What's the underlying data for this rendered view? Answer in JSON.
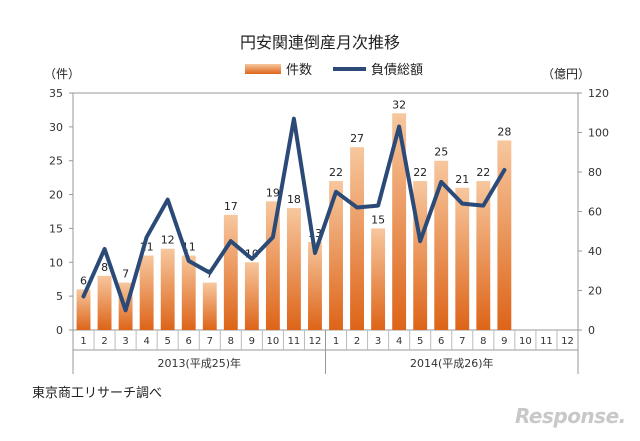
{
  "chart_data": {
    "type": "bar",
    "title": "円安関連倒産月次推移",
    "left_axis_unit": "（件）",
    "right_axis_unit": "（億円）",
    "left_ylim": [
      0,
      35
    ],
    "left_ticks": [
      "0",
      "5",
      "10",
      "15",
      "20",
      "25",
      "30",
      "35"
    ],
    "right_ylim": [
      0,
      120
    ],
    "right_ticks": [
      "0",
      "20",
      "40",
      "60",
      "80",
      "100",
      "120"
    ],
    "month_labels": [
      "1",
      "2",
      "3",
      "4",
      "5",
      "6",
      "7",
      "8",
      "9",
      "10",
      "11",
      "12",
      "1",
      "2",
      "3",
      "4",
      "5",
      "6",
      "7",
      "8",
      "9",
      "10",
      "11",
      "12"
    ],
    "year_labels": [
      "2013(平成25)年",
      "2014(平成26)年"
    ],
    "legend_position": "top-center",
    "grid": false,
    "series": [
      {
        "name": "件数",
        "kind": "bar",
        "axis": "left",
        "color": "#e8732a",
        "values": [
          6,
          8,
          7,
          11,
          12,
          11,
          7,
          17,
          10,
          19,
          18,
          13,
          22,
          27,
          15,
          32,
          22,
          25,
          21,
          22,
          28
        ],
        "value_labels": [
          "6",
          "8",
          "7",
          "11",
          "12",
          "11",
          "7",
          "17",
          "10",
          "19",
          "18",
          "13",
          "22",
          "27",
          "15",
          "32",
          "22",
          "25",
          "21",
          "22",
          "28"
        ]
      },
      {
        "name": "負債総額",
        "kind": "line",
        "axis": "right",
        "color": "#2b4a77",
        "values": [
          17,
          41,
          10,
          47,
          66,
          35,
          29,
          45,
          36,
          47,
          107,
          39,
          70,
          62,
          63,
          103,
          45,
          75,
          64,
          63,
          81
        ]
      }
    ]
  },
  "source_note": "東京商工リサーチ調べ",
  "brand_logo": "Response."
}
